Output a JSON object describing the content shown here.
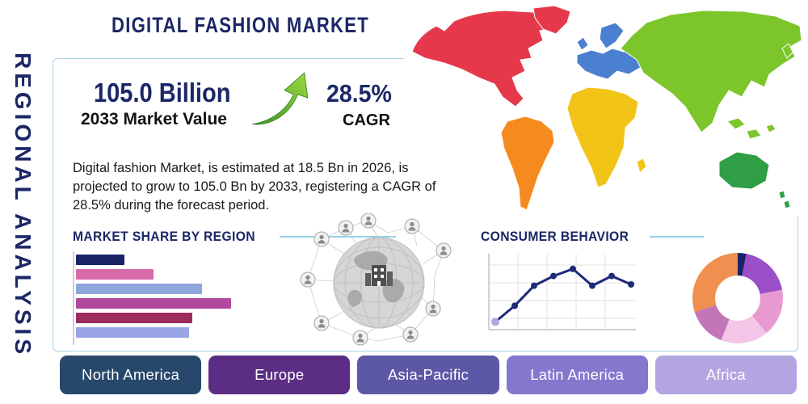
{
  "page": {
    "title": "DIGITAL FASHION MARKET",
    "side_label": "REGIONAL ANALYSIS"
  },
  "theme": {
    "accent_navy": "#1b2766",
    "rule_color": "#96d2e8",
    "arrow_green": "#6fbe44",
    "card_border": "#a9d3e6"
  },
  "icons": {
    "growth_arrow": "up-right-curved-arrow",
    "globe_network": "connected-globe-illustration"
  },
  "stats": {
    "market_value": "105.0 Billion",
    "market_value_label": "2033 Market Value",
    "cagr_value": "28.5%",
    "cagr_label": "CAGR",
    "description": "Digital fashion Market, is estimated at 18.5 Bn in 2026, is projected to grow to 105.0 Bn by 2033, registering a CAGR of 28.5% during the forecast period."
  },
  "sections": {
    "market_share_title": "MARKET SHARE BY REGION",
    "consumer_behavior_title": "CONSUMER BEHAVIOR"
  },
  "regions": [
    {
      "label": "North America",
      "color": "#27486b"
    },
    {
      "label": "Europe",
      "color": "#5b2d85"
    },
    {
      "label": "Asia-Pacific",
      "color": "#5c58a6"
    },
    {
      "label": "Latin America",
      "color": "#8378cd"
    },
    {
      "label": "Africa",
      "color": "#b3a5e2"
    }
  ],
  "map": {
    "continents": [
      {
        "id": "north-america",
        "name": "North America",
        "color": "#e5394b"
      },
      {
        "id": "greenland",
        "name": "Greenland",
        "color": "#e5394b"
      },
      {
        "id": "south-america",
        "name": "South America",
        "color": "#f58a1f"
      },
      {
        "id": "europe",
        "name": "Europe",
        "color": "#4b80d1"
      },
      {
        "id": "africa",
        "name": "Africa",
        "color": "#f2c417"
      },
      {
        "id": "asia",
        "name": "Asia",
        "color": "#7cc62c"
      },
      {
        "id": "australia",
        "name": "Australia",
        "color": "#2f9e44"
      }
    ]
  },
  "chart_data": [
    {
      "type": "bar",
      "title": "MARKET SHARE BY REGION",
      "orientation": "horizontal",
      "values": [
        30,
        48,
        78,
        96,
        72,
        70
      ],
      "value_note": "estimated percent of max bar length; no axis labels shown",
      "colors": [
        "#1a2366",
        "#d76ba8",
        "#8fa6db",
        "#b14a9e",
        "#9c2b5e",
        "#9aa5e6"
      ],
      "grid": false,
      "legend": "none"
    },
    {
      "type": "line",
      "title": "CONSUMER BEHAVIOR",
      "x": [
        1,
        2,
        3,
        4,
        5,
        6,
        7,
        8
      ],
      "values": [
        7,
        32,
        63,
        78,
        89,
        63,
        78,
        65
      ],
      "ylim": [
        0,
        100
      ],
      "value_note": "estimated from plot; no tick labels shown",
      "color": "#1e2a78",
      "marker_color": "#1e2a78",
      "first_marker_color": "#b3a5e2",
      "grid": true,
      "legend": "none"
    },
    {
      "type": "pie",
      "title": "Regional share donut",
      "donut": true,
      "values": [
        3,
        19,
        17,
        17,
        14,
        30
      ],
      "value_note": "estimated slice percentages; no labels shown",
      "colors": [
        "#1a2366",
        "#9a4fc8",
        "#e89ad0",
        "#f3c6e8",
        "#c276b8",
        "#ef9051"
      ],
      "legend": "none"
    }
  ]
}
